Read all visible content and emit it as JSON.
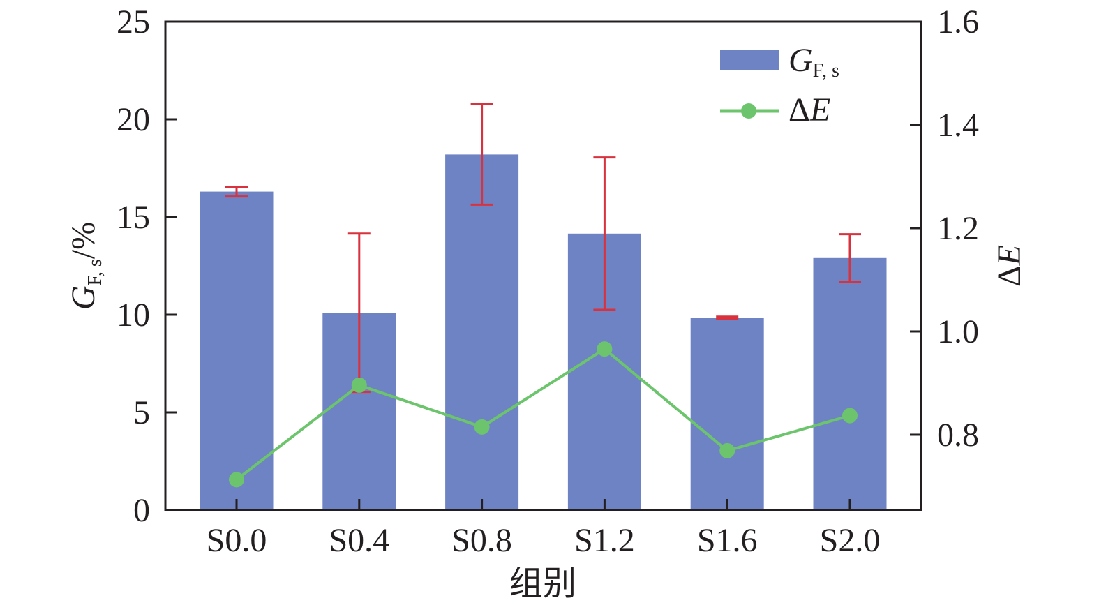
{
  "chart_data": {
    "type": "bar",
    "title": "",
    "xlabel": "组别",
    "ylabel": {
      "main": "G",
      "sub": "F, s",
      "suffix": "/%"
    },
    "y2label": {
      "prefix": "Δ",
      "main": "E"
    },
    "categories": [
      "S0.0",
      "S0.4",
      "S0.8",
      "S1.2",
      "S1.6",
      "S2.0"
    ],
    "ylim": [
      0,
      25
    ],
    "y_ticks": [
      0,
      5,
      10,
      15,
      20,
      25
    ],
    "y2lim": [
      0.654,
      1.6
    ],
    "y2_ticks": [
      "0.8",
      "1.0",
      "1.2",
      "1.4",
      "1.6"
    ],
    "grid": false,
    "legend_position": "top-right",
    "series": [
      {
        "name": "G_F,s",
        "legend_main": "G",
        "legend_sub": "F, s",
        "type": "bar",
        "axis": "left",
        "color": "#6e83c4",
        "values": [
          16.3,
          10.1,
          18.2,
          14.15,
          9.85,
          12.9
        ],
        "errors": [
          0.25,
          4.05,
          2.57,
          3.9,
          0.05,
          1.22
        ],
        "error_color": "#d8323e"
      },
      {
        "name": "ΔE",
        "legend_prefix": "Δ",
        "legend_main": "E",
        "type": "line",
        "axis": "right",
        "color": "#6cc46c",
        "values": [
          0.713,
          0.896,
          0.815,
          0.966,
          0.769,
          0.837
        ]
      }
    ]
  }
}
